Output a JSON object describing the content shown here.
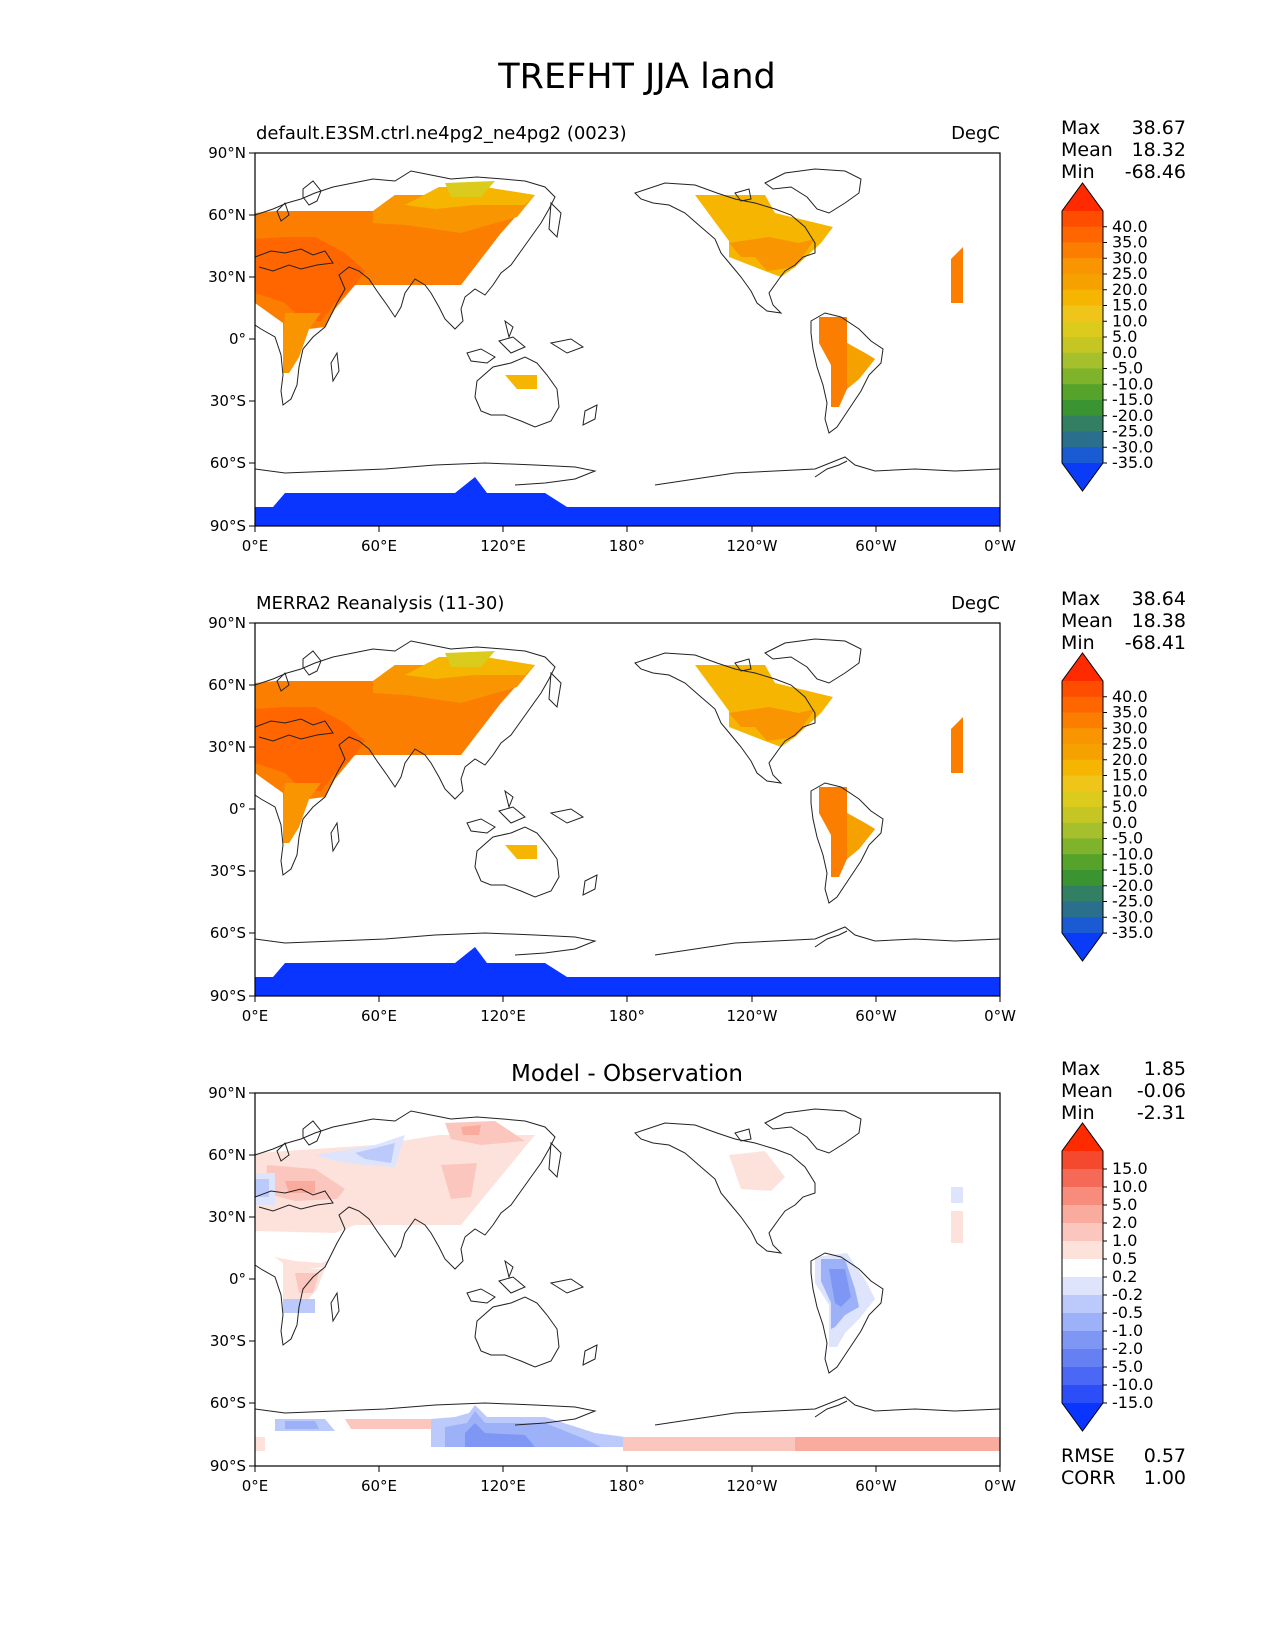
{
  "figure_title": "TREFHT JJA land",
  "axes": {
    "lat_ticks": [
      "90°N",
      "60°N",
      "30°N",
      "0°",
      "30°S",
      "60°S",
      "90°S"
    ],
    "lon_ticks": [
      "0°E",
      "60°E",
      "120°E",
      "180°",
      "120°W",
      "60°W",
      "0°W"
    ]
  },
  "panels": [
    {
      "left_title": "default.E3SM.ctrl.ne4pg2_ne4pg2 (0023)",
      "center_title": "",
      "right_title": "DegC",
      "stats": [
        {
          "label": "Max",
          "value": "38.67"
        },
        {
          "label": "Mean",
          "value": "18.32"
        },
        {
          "label": "Min",
          "value": "-68.46"
        }
      ],
      "colorbar_ticks": [
        "40.0",
        "35.0",
        "30.0",
        "25.0",
        "20.0",
        "15.0",
        "10.0",
        "5.0",
        "0.0",
        "-5.0",
        "-10.0",
        "-15.0",
        "-20.0",
        "-25.0",
        "-30.0",
        "-35.0"
      ],
      "colorbar_colors": [
        "#ff2a00",
        "#ff4d00",
        "#ff6600",
        "#fb7e00",
        "#f89500",
        "#f5a200",
        "#f5b500",
        "#f0c51a",
        "#dacb1c",
        "#c5c524",
        "#a6bf2c",
        "#7fb32b",
        "#55a32a",
        "#3b9432",
        "#327f64",
        "#2a6f8c",
        "#1a5ad2",
        "#0a3cf8"
      ],
      "extra_stats": []
    },
    {
      "left_title": "MERRA2 Reanalysis (11-30)",
      "center_title": "",
      "right_title": "DegC",
      "stats": [
        {
          "label": "Max",
          "value": "38.64"
        },
        {
          "label": "Mean",
          "value": "18.38"
        },
        {
          "label": "Min",
          "value": "-68.41"
        }
      ],
      "colorbar_ticks": [
        "40.0",
        "35.0",
        "30.0",
        "25.0",
        "20.0",
        "15.0",
        "10.0",
        "5.0",
        "0.0",
        "-5.0",
        "-10.0",
        "-15.0",
        "-20.0",
        "-25.0",
        "-30.0",
        "-35.0"
      ],
      "colorbar_colors": [
        "#ff2a00",
        "#ff4d00",
        "#ff6600",
        "#fb7e00",
        "#f89500",
        "#f5a200",
        "#f5b500",
        "#f0c51a",
        "#dacb1c",
        "#c5c524",
        "#a6bf2c",
        "#7fb32b",
        "#55a32a",
        "#3b9432",
        "#327f64",
        "#2a6f8c",
        "#1a5ad2",
        "#0a3cf8"
      ],
      "extra_stats": []
    },
    {
      "left_title": "",
      "center_title": "Model - Observation",
      "right_title": "",
      "stats": [
        {
          "label": "Max",
          "value": "1.85"
        },
        {
          "label": "Mean",
          "value": "-0.06"
        },
        {
          "label": "Min",
          "value": "-2.31"
        }
      ],
      "colorbar_ticks": [
        "15.0",
        "10.0",
        "5.0",
        "2.0",
        "1.0",
        "0.5",
        "0.2",
        "-0.2",
        "-0.5",
        "-1.0",
        "-2.0",
        "-5.0",
        "-10.0",
        "-15.0"
      ],
      "colorbar_colors": [
        "#ff2a00",
        "#f4492f",
        "#f56a56",
        "#f78c7c",
        "#f9ab9e",
        "#fbc6bd",
        "#fde2dc",
        "#ffffff",
        "#dde4fb",
        "#bccafb",
        "#9db1f8",
        "#7f97f4",
        "#6480f2",
        "#4a68f5",
        "#2b4ef8",
        "#0a34ff"
      ],
      "extra_stats": [
        {
          "label": "RMSE",
          "value": "0.57"
        },
        {
          "label": "CORR",
          "value": "1.00"
        }
      ]
    }
  ]
}
